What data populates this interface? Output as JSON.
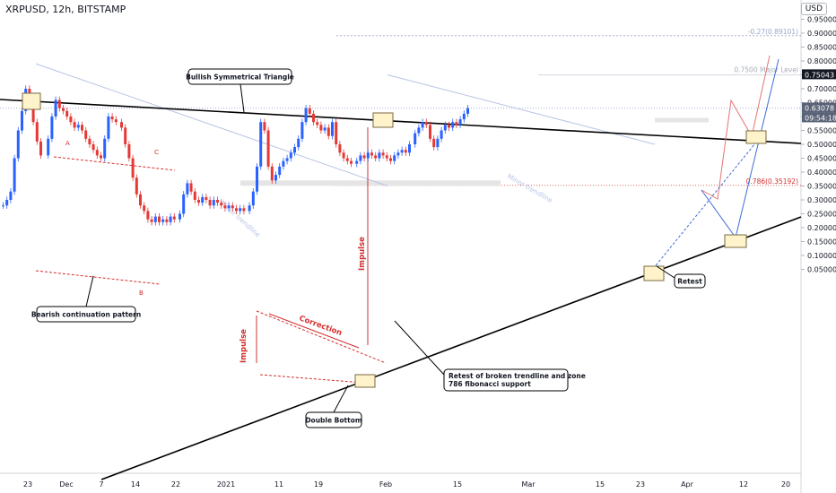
{
  "header": {
    "symbol_label": "XRPUSD, 12h, BITSTAMP",
    "currency_button": "USD"
  },
  "colors": {
    "up": "#2962ff",
    "down": "#e53935",
    "trendline": "#000000",
    "annotation_red": "#d32f2f",
    "fib_blue": "#9aa5c9",
    "highlight_box": "#fff3cc"
  },
  "chart_data": {
    "type": "candlestick",
    "title": "XRPUSD, 12h, BITSTAMP",
    "y_axis": {
      "ticks": [
        "0.95000",
        "0.90000",
        "0.85000",
        "0.80000",
        "0.75000",
        "0.70000",
        "0.65000",
        "0.60000",
        "0.55000",
        "0.50000",
        "0.45000",
        "0.40000",
        "0.35000",
        "0.30000",
        "0.25000",
        "0.20000",
        "0.15000",
        "0.10000",
        "0.05000"
      ],
      "range": [
        0.03,
        0.97
      ],
      "price_labels": [
        {
          "value": "0.75043",
          "style": "dark"
        },
        {
          "value": "0.63078",
          "style": "slate"
        },
        {
          "value": "09:54:18",
          "style": "slate"
        }
      ]
    },
    "x_axis": {
      "ticks": [
        "23",
        "Dec",
        "7",
        "14",
        "22",
        "2021",
        "11",
        "19",
        "Feb",
        "15",
        "Mar",
        "15",
        "23",
        "Apr",
        "12",
        "20"
      ]
    },
    "series": [
      {
        "phase": "Nov 23 spike",
        "values": [
          0.28,
          0.3,
          0.33,
          0.45,
          0.55,
          0.62,
          0.7,
          0.64,
          0.58,
          0.51,
          0.46
        ]
      },
      {
        "phase": "Dec range A-B-C",
        "values": [
          0.52,
          0.6,
          0.66,
          0.63,
          0.62,
          0.6,
          0.58,
          0.56,
          0.57,
          0.55,
          0.52,
          0.5,
          0.48,
          0.46,
          0.45,
          0.52,
          0.6,
          0.59,
          0.58
        ]
      },
      {
        "phase": "Dec crash",
        "values": [
          0.56,
          0.5,
          0.45,
          0.38,
          0.32,
          0.28,
          0.26,
          0.23,
          0.22,
          0.24,
          0.22,
          0.23,
          0.22,
          0.24,
          0.23
        ]
      },
      {
        "phase": "Jan impulse/correction",
        "values": [
          0.25,
          0.32,
          0.36,
          0.33,
          0.3,
          0.29,
          0.31,
          0.3,
          0.28,
          0.3,
          0.29,
          0.28,
          0.27,
          0.28,
          0.27,
          0.26,
          0.27,
          0.26
        ]
      },
      {
        "phase": "Feb 1 spike",
        "values": [
          0.28,
          0.33,
          0.42,
          0.58,
          0.55,
          0.42,
          0.37,
          0.39,
          0.42,
          0.44,
          0.45,
          0.47,
          0.49,
          0.52,
          0.58,
          0.63,
          0.61,
          0.58,
          0.57,
          0.55,
          0.56,
          0.53,
          0.58,
          0.5,
          0.47,
          0.45,
          0.44,
          0.43
        ]
      },
      {
        "phase": "Mar range",
        "values": [
          0.44,
          0.46,
          0.45,
          0.47,
          0.46,
          0.45,
          0.47,
          0.46,
          0.45,
          0.44,
          0.46,
          0.47,
          0.48,
          0.47,
          0.5
        ]
      },
      {
        "phase": "Late Mar-Apr",
        "values": [
          0.54,
          0.56,
          0.58,
          0.57,
          0.52,
          0.49,
          0.52,
          0.55,
          0.57,
          0.56,
          0.58,
          0.57,
          0.59,
          0.61,
          0.63
        ]
      }
    ],
    "annotations": [
      {
        "id": "triangle",
        "text": "Bullish Symmetrical Triangle"
      },
      {
        "id": "bearish",
        "text": "Bearish continuation pattern"
      },
      {
        "id": "retest1",
        "text": "Retest of broken trendline and zone 786 fibonacci support"
      },
      {
        "id": "double_bottom",
        "text": "Double Bottom"
      },
      {
        "id": "retest2",
        "text": "Retest"
      },
      {
        "id": "fib027",
        "text": "-0.27(0.89101)"
      },
      {
        "id": "fib075",
        "text": "0.7500 Major Level"
      },
      {
        "id": "fib0786",
        "text": "0.786(0.35192)"
      },
      {
        "id": "impulse1",
        "text": "Impulse"
      },
      {
        "id": "impulse2",
        "text": "Impulse"
      },
      {
        "id": "correction",
        "text": "Correction"
      },
      {
        "id": "minor1",
        "text": "Minor trendline"
      },
      {
        "id": "minor2",
        "text": "Minor trendline"
      },
      {
        "id": "pt_a",
        "text": "A"
      },
      {
        "id": "pt_b",
        "text": "B"
      },
      {
        "id": "pt_c",
        "text": "C"
      }
    ]
  }
}
